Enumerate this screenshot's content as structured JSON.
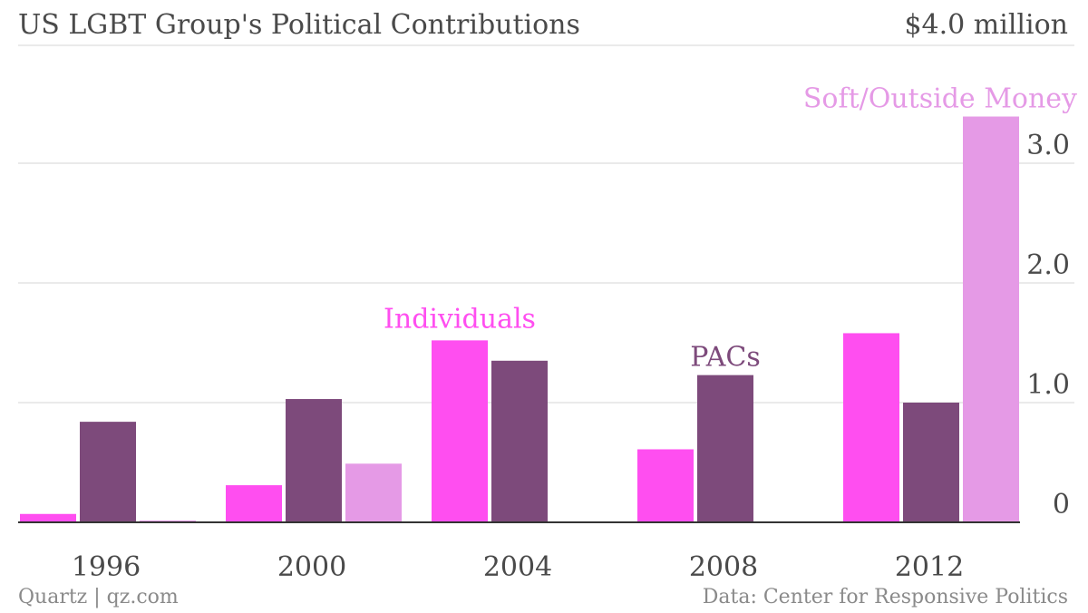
{
  "header": {
    "title": "US LGBT Group's Political Contributions",
    "top_label": "$4.0 million"
  },
  "footer": {
    "source_left": "Quartz | qz.com",
    "source_right": "Data: Center for Responsive Politics"
  },
  "colors": {
    "individuals": "#ff4ef0",
    "pacs": "#7d4a7b",
    "soft": "#e59ae6",
    "grid": "#e3e3e3",
    "axis": "#333333",
    "text": "#4a4a4a"
  },
  "chart_data": {
    "type": "bar",
    "title": "US LGBT Group's Political Contributions",
    "categories": [
      "1996",
      "2000",
      "2004",
      "2008",
      "2012"
    ],
    "series": [
      {
        "name": "Individuals",
        "values": [
          0.07,
          0.31,
          1.52,
          0.61,
          1.58
        ]
      },
      {
        "name": "PACs",
        "values": [
          0.84,
          1.03,
          1.35,
          1.23,
          1.0
        ]
      },
      {
        "name": "Soft/Outside Money",
        "values": [
          0.01,
          0.49,
          0.0,
          0.0,
          3.39
        ]
      }
    ],
    "y_ticks": [
      "0",
      "1.0",
      "2.0",
      "3.0"
    ],
    "y_tick_values": [
      0,
      1,
      2,
      3
    ],
    "ylim": [
      0,
      4
    ],
    "grid": true,
    "y_axis_side": "right",
    "legend": "inline labels above bars"
  }
}
